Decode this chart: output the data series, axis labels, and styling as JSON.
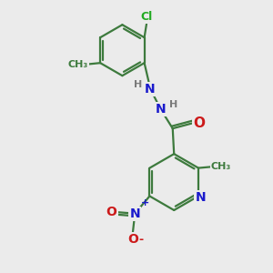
{
  "background_color": "#ebebeb",
  "bond_color": "#3d7a3d",
  "bond_width": 1.6,
  "atom_colors": {
    "C": "#3d7a3d",
    "N": "#1a1acc",
    "O": "#cc1a1a",
    "Cl": "#22aa22",
    "H": "#7a7a7a"
  },
  "font_size": 9,
  "fig_size": [
    3.0,
    3.0
  ],
  "dpi": 100
}
